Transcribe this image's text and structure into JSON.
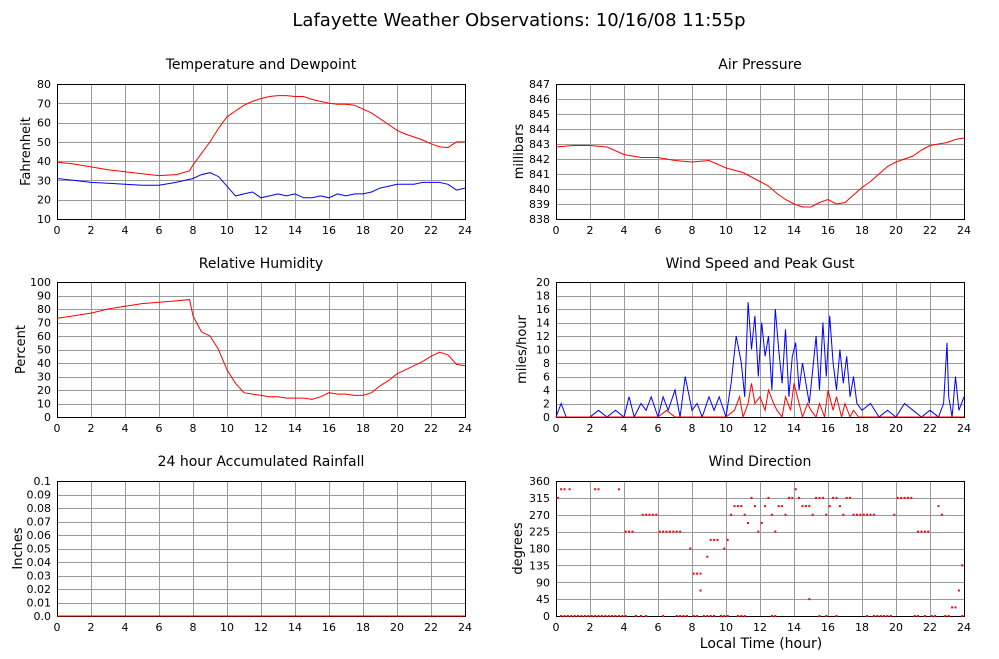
{
  "title": "Lafayette Weather Observations: 10/16/08 11:55p",
  "xlabel": "Local Time (hour)",
  "colors": {
    "red": "#ff0000",
    "blue": "#0000ff",
    "grid": "#9a9a9a"
  },
  "chart_data": [
    {
      "id": "temp",
      "type": "line",
      "title": "Temperature and Dewpoint",
      "ylabel": "Fahrenheit",
      "xlim": [
        0,
        24
      ],
      "ylim": [
        10,
        80
      ],
      "xticks": [
        0,
        2,
        4,
        6,
        8,
        10,
        12,
        14,
        16,
        18,
        20,
        22,
        24
      ],
      "yticks": [
        10,
        20,
        30,
        40,
        50,
        60,
        70,
        80
      ],
      "grid": true,
      "series": [
        {
          "color": "#ff0000",
          "x": [
            0,
            1,
            2,
            3,
            4,
            5,
            6,
            7,
            7.8,
            8,
            8.5,
            9,
            9.5,
            10,
            10.5,
            11,
            11.5,
            12,
            12.5,
            13,
            13.5,
            14,
            14.5,
            15,
            15.5,
            16,
            16.5,
            17,
            17.5,
            18,
            18.5,
            19,
            19.5,
            20,
            20.5,
            21,
            21.5,
            22,
            22.5,
            23,
            23.5,
            24
          ],
          "y": [
            39.5,
            38.5,
            37,
            35.5,
            34.5,
            33.5,
            32.5,
            33,
            35,
            38,
            44,
            50,
            57,
            63,
            66,
            69,
            71,
            72.5,
            73.5,
            74,
            74,
            73.5,
            73.5,
            72,
            71,
            70,
            69.5,
            69.5,
            69,
            67,
            65,
            62,
            59,
            56,
            54,
            52.5,
            51,
            49,
            47.5,
            47,
            50,
            50
          ]
        },
        {
          "color": "#0000ff",
          "x": [
            0,
            1,
            2,
            3,
            4,
            5,
            6,
            7,
            8,
            8.5,
            9,
            9.5,
            10,
            10.5,
            11,
            11.5,
            12,
            12.5,
            13,
            13.5,
            14,
            14.5,
            15,
            15.5,
            16,
            16.5,
            17,
            17.5,
            18,
            18.5,
            19,
            19.5,
            20,
            20.5,
            21,
            21.5,
            22,
            22.5,
            23,
            23.5,
            24
          ],
          "y": [
            31,
            30,
            29,
            28.5,
            28,
            27.5,
            27.5,
            29,
            31,
            33,
            34,
            32,
            27,
            22,
            23,
            24,
            21,
            22,
            23,
            22,
            23,
            21,
            21,
            22,
            21,
            23,
            22,
            23,
            23,
            24,
            26,
            27,
            28,
            28,
            28,
            29,
            29,
            29,
            28,
            25,
            26
          ]
        }
      ]
    },
    {
      "id": "pressure",
      "type": "line",
      "title": "Air Pressure",
      "ylabel": "millibars",
      "xlim": [
        0,
        24
      ],
      "ylim": [
        838,
        847
      ],
      "xticks": [
        0,
        2,
        4,
        6,
        8,
        10,
        12,
        14,
        16,
        18,
        20,
        22,
        24
      ],
      "yticks": [
        838,
        839,
        840,
        841,
        842,
        843,
        844,
        845,
        846,
        847
      ],
      "grid": true,
      "series": [
        {
          "color": "#ff0000",
          "x": [
            0,
            1,
            2,
            3,
            4,
            5,
            6,
            7,
            8,
            9,
            10,
            11,
            12,
            12.5,
            13,
            13.5,
            14,
            14.5,
            15,
            15.5,
            16,
            16.5,
            17,
            17.5,
            18,
            18.5,
            19,
            19.5,
            20,
            20.5,
            21,
            21.5,
            22,
            22.5,
            23,
            23.5,
            24
          ],
          "y": [
            842.8,
            842.9,
            842.9,
            842.8,
            842.3,
            842.1,
            842.1,
            841.9,
            841.8,
            841.9,
            841.4,
            841.1,
            840.5,
            840.2,
            839.7,
            839.3,
            839,
            838.8,
            838.8,
            839.1,
            839.3,
            839,
            839.1,
            839.6,
            840.1,
            840.5,
            841,
            841.5,
            841.8,
            842,
            842.2,
            842.6,
            842.9,
            843,
            843.1,
            843.3,
            843.4
          ]
        }
      ]
    },
    {
      "id": "humidity",
      "type": "line",
      "title": "Relative Humidity",
      "ylabel": "Percent",
      "xlim": [
        0,
        24
      ],
      "ylim": [
        0,
        100
      ],
      "xticks": [
        0,
        2,
        4,
        6,
        8,
        10,
        12,
        14,
        16,
        18,
        20,
        22,
        24
      ],
      "yticks": [
        0,
        10,
        20,
        30,
        40,
        50,
        60,
        70,
        80,
        90,
        100
      ],
      "grid": true,
      "series": [
        {
          "color": "#ff0000",
          "x": [
            0,
            1,
            2,
            3,
            4,
            5,
            6,
            7,
            7.8,
            8,
            8.5,
            9,
            9.5,
            10,
            10.5,
            11,
            11.5,
            12,
            12.5,
            13,
            13.5,
            14,
            14.5,
            15,
            15.5,
            16,
            16.5,
            17,
            17.5,
            18,
            18.5,
            19,
            19.5,
            20,
            20.5,
            21,
            21.5,
            22,
            22.5,
            23,
            23.5,
            24
          ],
          "y": [
            73,
            75,
            77,
            80,
            82,
            84,
            85,
            86,
            87,
            75,
            63,
            60,
            50,
            35,
            25,
            18,
            17,
            16,
            15,
            15,
            14,
            14,
            14,
            13,
            15,
            18,
            17,
            17,
            16,
            16,
            18,
            23,
            27,
            32,
            35,
            38,
            41,
            45,
            48,
            46,
            39,
            38
          ]
        }
      ]
    },
    {
      "id": "wind",
      "type": "line",
      "title": "Wind Speed and Peak Gust",
      "ylabel": "miles/hour",
      "xlim": [
        0,
        24
      ],
      "ylim": [
        0,
        20
      ],
      "xticks": [
        0,
        2,
        4,
        6,
        8,
        10,
        12,
        14,
        16,
        18,
        20,
        22,
        24
      ],
      "yticks": [
        0,
        2,
        4,
        6,
        8,
        10,
        12,
        14,
        16,
        18,
        20
      ],
      "grid": true,
      "series": [
        {
          "color": "#0000ff",
          "x": [
            0,
            0.3,
            0.6,
            1,
            2,
            2.5,
            3,
            3.5,
            4,
            4.3,
            4.6,
            5,
            5.3,
            5.6,
            6,
            6.3,
            6.6,
            7,
            7.3,
            7.6,
            8,
            8.3,
            8.6,
            9,
            9.3,
            9.6,
            10,
            10.3,
            10.6,
            10.9,
            11.1,
            11.3,
            11.5,
            11.7,
            11.9,
            12.1,
            12.3,
            12.5,
            12.7,
            12.9,
            13.1,
            13.3,
            13.5,
            13.7,
            13.9,
            14.1,
            14.3,
            14.5,
            14.7,
            14.9,
            15.1,
            15.3,
            15.5,
            15.7,
            15.9,
            16.1,
            16.3,
            16.5,
            16.7,
            16.9,
            17.1,
            17.3,
            17.5,
            17.7,
            18,
            18.5,
            19,
            19.5,
            20,
            20.5,
            21,
            21.5,
            22,
            22.5,
            22.8,
            23,
            23.1,
            23.3,
            23.5,
            23.7,
            24
          ],
          "y": [
            0,
            2,
            0,
            0,
            0,
            1,
            0,
            1,
            0,
            3,
            0,
            2,
            1,
            3,
            0,
            3,
            1,
            4,
            0,
            6,
            1,
            2,
            0,
            3,
            1,
            3,
            0,
            5,
            12,
            8,
            3,
            17,
            10,
            15,
            6,
            14,
            9,
            12,
            4,
            16,
            10,
            5,
            13,
            3,
            9,
            11,
            4,
            8,
            5,
            2,
            7,
            12,
            4,
            14,
            6,
            15,
            8,
            4,
            10,
            5,
            9,
            3,
            6,
            2,
            1,
            2,
            0,
            1,
            0,
            2,
            1,
            0,
            1,
            0,
            2,
            11,
            3,
            0,
            6,
            1,
            3
          ]
        },
        {
          "color": "#ff0000",
          "x": [
            0,
            1,
            2,
            3,
            4,
            5,
            6,
            6.5,
            7,
            7.5,
            8,
            8.5,
            9,
            9.5,
            10,
            10.5,
            10.8,
            11,
            11.3,
            11.5,
            11.7,
            12,
            12.3,
            12.5,
            12.8,
            13,
            13.3,
            13.5,
            13.8,
            14,
            14.3,
            14.5,
            14.8,
            15,
            15.3,
            15.5,
            15.8,
            16,
            16.3,
            16.5,
            16.8,
            17,
            17.3,
            17.5,
            17.8,
            18,
            19,
            20,
            21,
            22,
            23,
            24
          ],
          "y": [
            0,
            0,
            0,
            0,
            0,
            0,
            0,
            1,
            0,
            0,
            0,
            0,
            0,
            0,
            0,
            1,
            3,
            0,
            2,
            5,
            2,
            3,
            1,
            4,
            2,
            1,
            0,
            3,
            1,
            5,
            2,
            0,
            2,
            1,
            0,
            2,
            0,
            4,
            1,
            3,
            0,
            2,
            0,
            1,
            0,
            0,
            0,
            0,
            0,
            0,
            0,
            0
          ]
        }
      ]
    },
    {
      "id": "rain",
      "type": "line",
      "title": "24 hour Accumulated Rainfall",
      "ylabel": "Inches",
      "xlim": [
        0,
        24
      ],
      "ylim": [
        0,
        0.1
      ],
      "xticks": [
        0,
        2,
        4,
        6,
        8,
        10,
        12,
        14,
        16,
        18,
        20,
        22,
        24
      ],
      "yticks": [
        "0.0",
        "0.01",
        "0.02",
        "0.03",
        "0.04",
        "0.05",
        "0.06",
        "0.07",
        "0.08",
        "0.09",
        "0.1"
      ],
      "grid": true,
      "series": [
        {
          "color": "#ff0000",
          "x": [
            0,
            24
          ],
          "y": [
            0,
            0
          ]
        }
      ]
    },
    {
      "id": "direction",
      "type": "scatter",
      "title": "Wind Direction",
      "ylabel": "degrees",
      "xlim": [
        0,
        24
      ],
      "ylim": [
        0,
        360
      ],
      "xticks": [
        0,
        2,
        4,
        6,
        8,
        10,
        12,
        14,
        16,
        18,
        20,
        22,
        24
      ],
      "yticks": [
        0,
        45,
        90,
        135,
        180,
        225,
        270,
        315,
        360
      ],
      "grid": true,
      "series": [
        {
          "color": "#ff0000",
          "x": [
            0.1,
            0.3,
            0.5,
            0.7,
            0.9,
            1.1,
            1.3,
            1.5,
            1.7,
            1.9,
            2.1,
            2.3,
            2.5,
            2.7,
            2.9,
            3.1,
            3.3,
            3.5,
            3.7,
            0.3,
            0.5,
            0.8,
            2.3,
            2.5,
            3.7,
            3.9,
            4.1,
            4.3,
            4.5,
            4.7,
            5.1,
            5.3,
            5.5,
            5.7,
            5.9,
            6.1,
            6.3,
            6.5,
            6.7,
            6.9,
            7.1,
            7.3,
            7.5,
            7.7,
            7.9,
            8.1,
            8.3,
            8.5,
            8.7,
            8.9,
            9.1,
            9.3,
            9.5,
            9.7,
            9.9,
            10.1,
            10.3,
            10.5,
            10.7,
            10.9,
            11.1,
            11.3,
            11.5,
            11.7,
            11.9,
            12.1,
            12.3,
            12.5,
            12.7,
            12.9,
            13.1,
            13.3,
            13.5,
            13.7,
            13.9,
            14.1,
            14.3,
            14.5,
            14.7,
            14.9,
            15.1,
            15.3,
            15.5,
            15.7,
            15.9,
            16.1,
            16.3,
            16.5,
            16.7,
            16.9,
            17.1,
            17.3,
            17.5,
            17.7,
            17.9,
            18.1,
            18.3,
            18.5,
            18.7,
            18.9,
            19.1,
            19.3,
            19.5,
            19.7,
            19.9,
            20.1,
            20.3,
            20.5,
            20.7,
            20.9,
            21.1,
            21.3,
            21.5,
            21.7,
            21.9,
            22.1,
            22.3,
            22.5,
            22.7,
            22.9,
            23.1,
            23.3,
            23.5,
            23.7,
            23.9,
            4.1,
            4.7,
            5.0,
            5.3,
            6.3,
            7.1,
            7.3,
            8.1,
            8.3,
            8.9,
            9.1,
            9.7,
            9.9,
            10.1,
            10.9,
            11.1,
            14.9,
            18.3,
            18.7,
            19.5,
            21.3,
            21.7,
            23.9,
            8.5,
            9.3,
            10.1,
            10.7,
            12.7,
            12.9,
            15.5,
            15.9,
            16.5
          ],
          "y": [
            315,
            0,
            0,
            0,
            0,
            0,
            0,
            0,
            0,
            0,
            0,
            0,
            0,
            0,
            0,
            0,
            0,
            0,
            0,
            338,
            338,
            338,
            338,
            338,
            338,
            0,
            225,
            225,
            225,
            0,
            270,
            270,
            270,
            270,
            270,
            225,
            225,
            225,
            225,
            225,
            225,
            225,
            0,
            0,
            180,
            113,
            113,
            113,
            0,
            158,
            203,
            203,
            203,
            0,
            180,
            203,
            270,
            293,
            293,
            293,
            270,
            248,
            315,
            293,
            225,
            248,
            293,
            315,
            270,
            225,
            293,
            293,
            270,
            315,
            315,
            338,
            315,
            293,
            293,
            293,
            270,
            315,
            315,
            315,
            270,
            293,
            315,
            315,
            293,
            270,
            315,
            315,
            270,
            270,
            270,
            270,
            270,
            270,
            270,
            0,
            0,
            0,
            0,
            0,
            270,
            315,
            315,
            315,
            315,
            315,
            0,
            225,
            225,
            225,
            225,
            0,
            0,
            293,
            270,
            0,
            0,
            23,
            23,
            68,
            135,
            0,
            0,
            0,
            0,
            0,
            0,
            0,
            0,
            0,
            0,
            0,
            0,
            0,
            0,
            0,
            0,
            45,
            0,
            0,
            0,
            0,
            0,
            0,
            68,
            0,
            0,
            0,
            0,
            0,
            0,
            0,
            0
          ]
        }
      ]
    }
  ]
}
